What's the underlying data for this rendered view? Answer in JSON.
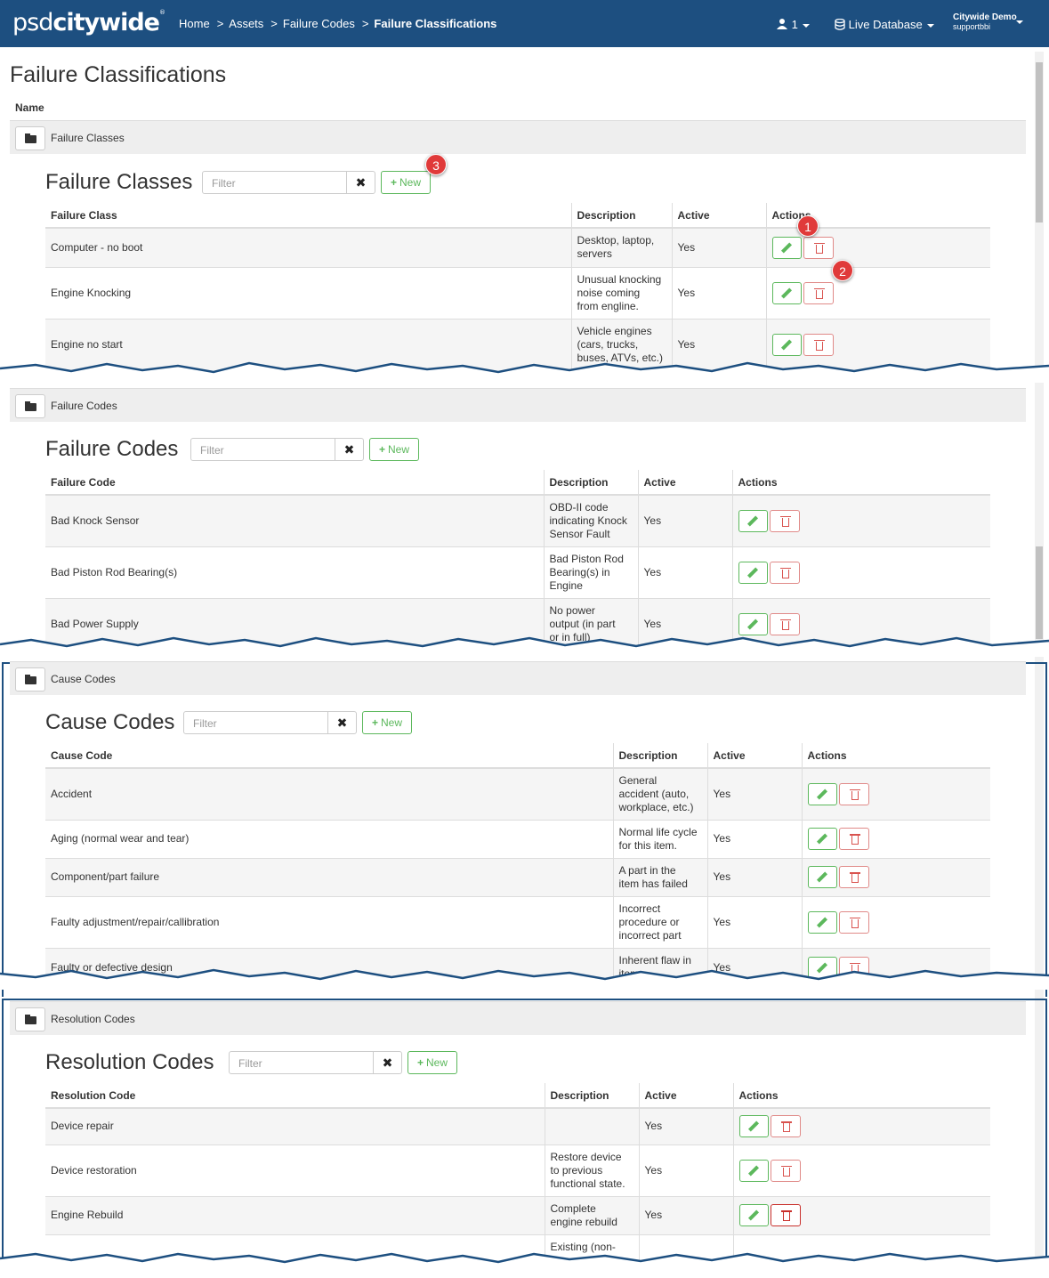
{
  "navbar": {
    "logo_light": "psd",
    "logo_bold": "citywide",
    "breadcrumb": [
      "Home",
      "Assets",
      "Failure Codes",
      "Failure Classifications"
    ],
    "breadcrumb_sep": ">",
    "users_count": "1",
    "database": "Live Database",
    "account_name": "Citywide Demo",
    "account_user": "supportbbi"
  },
  "page": {
    "title": "Failure Classifications",
    "name_header": "Name"
  },
  "filter_placeholder": "Filter",
  "clear_symbol": "✖",
  "new_label": "New",
  "badges": [
    "1",
    "2",
    "3"
  ],
  "sections": {
    "failure_classes": {
      "group_label": "Failure Classes",
      "title": "Failure Classes",
      "columns": [
        "Failure Class",
        "Description",
        "Active",
        "Actions"
      ],
      "rows": [
        {
          "name": "Computer - no boot",
          "desc": [
            "Desktop, laptop,",
            "servers"
          ],
          "active": "Yes"
        },
        {
          "name": "Engine Knocking",
          "desc": [
            "Unusual knocking",
            "noise coming",
            "from engline."
          ],
          "active": "Yes"
        },
        {
          "name": "Engine no start",
          "desc": [
            "Vehicle engines",
            "(cars, trucks,",
            "buses, ATVs, etc.)"
          ],
          "active": "Yes"
        }
      ]
    },
    "failure_codes": {
      "group_label": "Failure Codes",
      "title": "Failure Codes",
      "columns": [
        "Failure Code",
        "Description",
        "Active",
        "Actions"
      ],
      "rows": [
        {
          "name": "Bad Knock Sensor",
          "desc": [
            "OBD-II code",
            "indicating Knock",
            "Sensor Fault"
          ],
          "active": "Yes"
        },
        {
          "name": "Bad Piston Rod Bearing(s)",
          "desc": [
            "Bad Piston Rod",
            "Bearing(s) in",
            "Engine"
          ],
          "active": "Yes"
        },
        {
          "name": "Bad Power Supply",
          "desc": [
            "No power",
            "output (in part",
            "or in full)"
          ],
          "active": "Yes"
        }
      ]
    },
    "cause_codes": {
      "group_label": "Cause Codes",
      "title": "Cause Codes",
      "columns": [
        "Cause Code",
        "Description",
        "Active",
        "Actions"
      ],
      "rows": [
        {
          "name": "Accident",
          "desc": [
            "General",
            "accident (auto,",
            "workplace, etc.)"
          ],
          "active": "Yes"
        },
        {
          "name": "Aging (normal wear and tear)",
          "desc": [
            "Normal life cycle",
            "for this item."
          ],
          "active": "Yes"
        },
        {
          "name": "Component/part failure",
          "desc": [
            "A part in the",
            "item has failed"
          ],
          "active": "Yes"
        },
        {
          "name": "Faulty adjustment/repair/callibration",
          "desc": [
            "Incorrect",
            "procedure or",
            "incorrect part"
          ],
          "active": "Yes"
        },
        {
          "name": "Faulty or defective design",
          "desc": [
            "Inherent flaw in",
            "item"
          ],
          "active": "Yes"
        }
      ]
    },
    "resolution_codes": {
      "group_label": "Resolution Codes",
      "title": "Resolution Codes",
      "columns": [
        "Resolution Code",
        "Description",
        "Active",
        "Actions"
      ],
      "rows": [
        {
          "name": "Device repair",
          "desc": [],
          "active": "Yes"
        },
        {
          "name": "Device restoration",
          "desc": [
            "Restore device",
            "to previous",
            "functional state."
          ],
          "active": "Yes"
        },
        {
          "name": "Engine Rebuild",
          "desc": [
            "Complete",
            "engine rebuild"
          ],
          "active": "Yes"
        },
        {
          "name": "",
          "desc": [
            "Existing (non-"
          ],
          "active": ""
        }
      ]
    }
  },
  "colors": {
    "navbar": "#1d4f80",
    "success": "#5cb85c",
    "danger": "#d9534f",
    "badge": "#e03a3a"
  }
}
